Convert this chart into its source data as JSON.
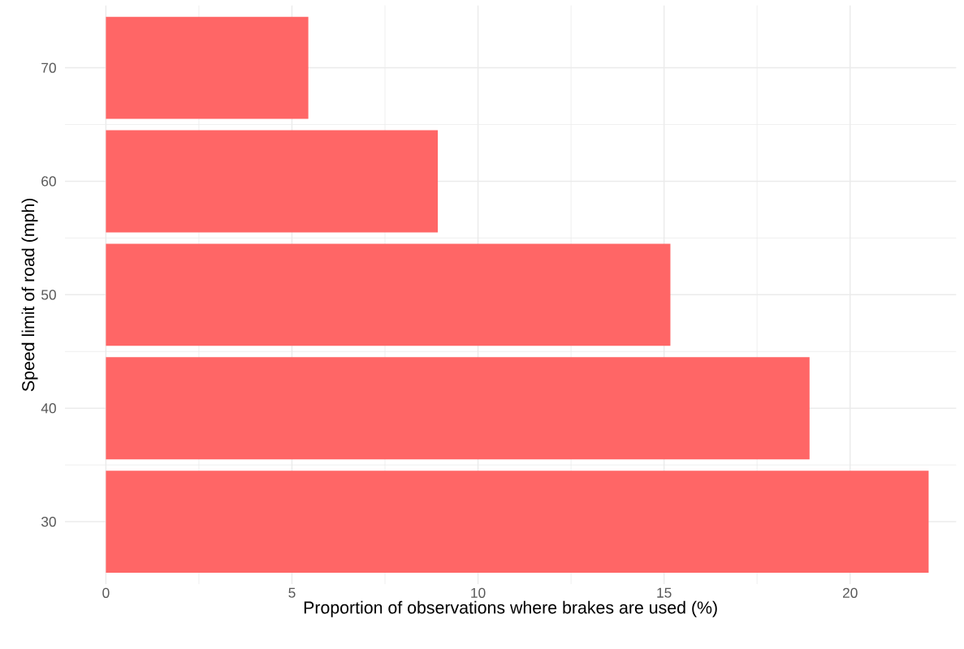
{
  "chart_data": {
    "type": "bar",
    "orientation": "horizontal",
    "xlabel": "Proportion of observations where brakes are used (%)",
    "ylabel": "Speed limit of road (mph)",
    "categories": [
      "70",
      "60",
      "50",
      "40",
      "30"
    ],
    "values": [
      5.44,
      8.92,
      15.17,
      18.91,
      22.11
    ],
    "color": "#ff6666",
    "xlim": [
      -1.1,
      22.85
    ],
    "xticks": [
      0,
      5,
      10,
      15,
      20
    ],
    "grid": true
  }
}
